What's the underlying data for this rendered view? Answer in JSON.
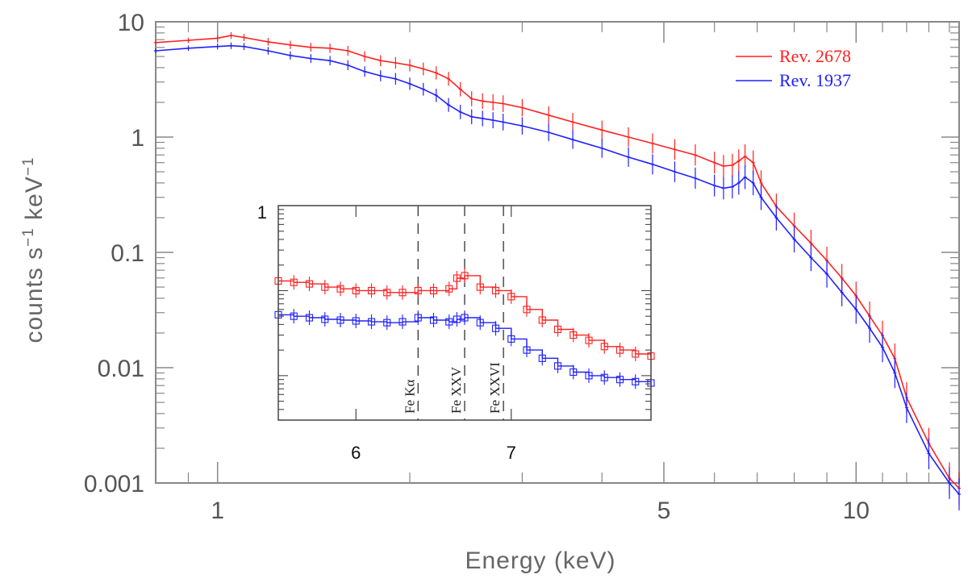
{
  "chart_data": {
    "type": "line",
    "xlabel": "Energy (keV)",
    "ylabel": "counts s",
    "ylabel_sup1": "−1",
    "ylabel_mid": " keV",
    "ylabel_sup2": "−1",
    "xscale": "log",
    "yscale": "log",
    "xlim": [
      0.8,
      14.5
    ],
    "ylim": [
      0.001,
      10
    ],
    "x_ticks": [
      {
        "value": 1,
        "label": "1"
      },
      {
        "value": 5,
        "label": "5"
      },
      {
        "value": 10,
        "label": "10"
      }
    ],
    "y_ticks": [
      {
        "value": 10,
        "label": "10"
      },
      {
        "value": 1,
        "label": "1"
      },
      {
        "value": 0.1,
        "label": "0.1"
      },
      {
        "value": 0.01,
        "label": "0.01"
      },
      {
        "value": 0.001,
        "label": "0.001"
      }
    ],
    "series": [
      {
        "name": "Rev. 2678",
        "color": "#ff2020",
        "x": [
          0.8,
          0.9,
          1.0,
          1.05,
          1.1,
          1.2,
          1.3,
          1.4,
          1.5,
          1.6,
          1.7,
          1.8,
          1.9,
          2.0,
          2.1,
          2.2,
          2.3,
          2.4,
          2.5,
          2.6,
          2.7,
          2.8,
          3.0,
          3.3,
          3.6,
          4.0,
          4.4,
          4.8,
          5.2,
          5.6,
          6.0,
          6.2,
          6.4,
          6.55,
          6.7,
          6.9,
          7.1,
          7.5,
          8.0,
          8.5,
          9.0,
          9.5,
          10.0,
          10.5,
          11.0,
          11.5,
          12.0,
          13.0,
          14.0,
          14.5
        ],
        "y": [
          6.6,
          6.9,
          7.2,
          7.6,
          7.3,
          6.7,
          6.3,
          6.0,
          5.9,
          5.6,
          5.0,
          4.6,
          4.4,
          4.2,
          3.9,
          3.6,
          3.2,
          2.6,
          2.15,
          2.05,
          2.0,
          1.95,
          1.8,
          1.55,
          1.35,
          1.15,
          1.0,
          0.88,
          0.78,
          0.7,
          0.6,
          0.56,
          0.57,
          0.62,
          0.68,
          0.6,
          0.4,
          0.25,
          0.17,
          0.12,
          0.085,
          0.06,
          0.042,
          0.028,
          0.019,
          0.012,
          0.0055,
          0.0022,
          0.0011,
          0.0009
        ]
      },
      {
        "name": "Rev. 1937",
        "color": "#2020ff",
        "x": [
          0.8,
          0.9,
          1.0,
          1.05,
          1.1,
          1.2,
          1.3,
          1.4,
          1.5,
          1.6,
          1.7,
          1.8,
          1.9,
          2.0,
          2.1,
          2.2,
          2.3,
          2.4,
          2.5,
          2.6,
          2.7,
          2.8,
          3.0,
          3.3,
          3.6,
          4.0,
          4.4,
          4.8,
          5.2,
          5.6,
          6.0,
          6.2,
          6.4,
          6.55,
          6.7,
          6.9,
          7.1,
          7.5,
          8.0,
          8.5,
          9.0,
          9.5,
          10.0,
          10.5,
          11.0,
          11.5,
          12.0,
          13.0,
          14.0,
          14.5
        ],
        "y": [
          5.6,
          5.9,
          6.1,
          6.2,
          6.1,
          5.6,
          5.1,
          4.8,
          4.6,
          4.2,
          3.7,
          3.4,
          3.2,
          2.9,
          2.6,
          2.3,
          1.9,
          1.65,
          1.5,
          1.45,
          1.4,
          1.35,
          1.25,
          1.1,
          0.95,
          0.8,
          0.67,
          0.58,
          0.5,
          0.44,
          0.38,
          0.36,
          0.37,
          0.4,
          0.45,
          0.4,
          0.3,
          0.2,
          0.13,
          0.09,
          0.065,
          0.045,
          0.032,
          0.022,
          0.015,
          0.009,
          0.0045,
          0.0018,
          0.001,
          0.0008
        ]
      }
    ],
    "legend": {
      "position": "top-right",
      "entries": [
        {
          "name": "Rev. 2678",
          "color": "#ff2020"
        },
        {
          "name": "Rev. 1937",
          "color": "#2020ff"
        }
      ]
    },
    "inset": {
      "xlim": [
        5.5,
        7.9
      ],
      "ylim": [
        0.003,
        1
      ],
      "x_ticks": [
        {
          "value": 6,
          "label": "6"
        },
        {
          "value": 7,
          "label": "7"
        }
      ],
      "y_tick_label": "1",
      "lines": [
        {
          "energy": 6.4,
          "label": "Fe Kα"
        },
        {
          "energy": 6.7,
          "label": "Fe XXV"
        },
        {
          "energy": 6.95,
          "label": "Fe XXVI"
        }
      ],
      "series": [
        {
          "name": "Rev. 2678",
          "color": "#ff2020",
          "x": [
            5.5,
            5.6,
            5.7,
            5.8,
            5.9,
            6.0,
            6.1,
            6.2,
            6.3,
            6.4,
            6.5,
            6.6,
            6.65,
            6.7,
            6.8,
            6.9,
            7.0,
            7.1,
            7.2,
            7.3,
            7.4,
            7.5,
            7.6,
            7.7,
            7.8,
            7.9
          ],
          "y": [
            0.13,
            0.125,
            0.12,
            0.11,
            0.105,
            0.1,
            0.1,
            0.095,
            0.095,
            0.1,
            0.1,
            0.105,
            0.14,
            0.15,
            0.11,
            0.1,
            0.085,
            0.06,
            0.045,
            0.035,
            0.03,
            0.026,
            0.022,
            0.02,
            0.018,
            0.017
          ]
        },
        {
          "name": "Rev. 1937",
          "color": "#2020ff",
          "x": [
            5.5,
            5.6,
            5.7,
            5.8,
            5.9,
            6.0,
            6.1,
            6.2,
            6.3,
            6.4,
            6.5,
            6.6,
            6.65,
            6.7,
            6.8,
            6.9,
            7.0,
            7.1,
            7.2,
            7.3,
            7.4,
            7.5,
            7.6,
            7.7,
            7.8,
            7.9
          ],
          "y": [
            0.052,
            0.05,
            0.048,
            0.046,
            0.045,
            0.044,
            0.043,
            0.042,
            0.043,
            0.048,
            0.045,
            0.043,
            0.046,
            0.048,
            0.042,
            0.036,
            0.027,
            0.02,
            0.016,
            0.013,
            0.011,
            0.01,
            0.0095,
            0.009,
            0.0085,
            0.0082
          ]
        }
      ]
    }
  }
}
